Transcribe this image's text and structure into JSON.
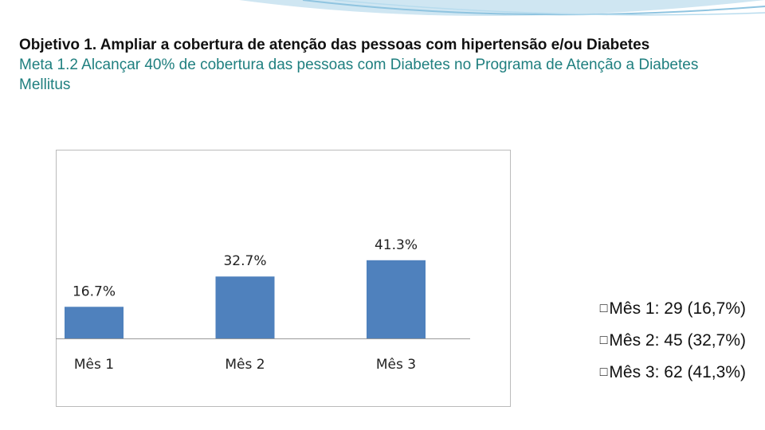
{
  "objective": "Objetivo 1. Ampliar a cobertura de atenção das pessoas com hipertensão e/ou Diabetes",
  "goal": "Meta 1.2 Alcançar  40% de cobertura das pessoas com Diabetes no Programa de Atenção a Diabetes Mellitus",
  "bullets": [
    "Mês 1: 29 (16,7%)",
    "Mês 2: 45 (32,7%)",
    "Mês 3: 62 (41,3%)"
  ],
  "chart_data": {
    "type": "bar",
    "categories": [
      "Mês 1",
      "Mês 2",
      "Mês 3"
    ],
    "values": [
      16.7,
      32.7,
      41.3
    ],
    "value_labels": [
      "16.7%",
      "32.7%",
      "41.3%"
    ],
    "color": "#4f81bd",
    "ylim": [
      0,
      45
    ]
  }
}
